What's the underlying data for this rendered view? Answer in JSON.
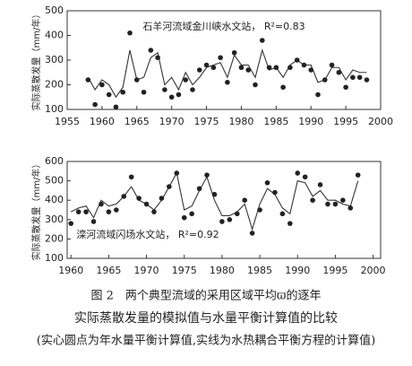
{
  "chart_data": [
    {
      "type": "line",
      "annotation": "石羊河流域金川峡水文站， R²=0.83",
      "y_label": "实际蒸散发量（mm/年）",
      "xlim": [
        1955,
        2000
      ],
      "xticks": [
        1955,
        1960,
        1965,
        1970,
        1975,
        1980,
        1985,
        1990,
        1995,
        2000
      ],
      "ylim": [
        100,
        500
      ],
      "yticks": [
        100,
        200,
        300,
        400,
        500
      ],
      "x": [
        1958,
        1959,
        1960,
        1961,
        1962,
        1963,
        1964,
        1965,
        1966,
        1967,
        1968,
        1969,
        1970,
        1971,
        1972,
        1973,
        1974,
        1975,
        1976,
        1977,
        1978,
        1979,
        1980,
        1981,
        1982,
        1983,
        1984,
        1985,
        1986,
        1987,
        1988,
        1989,
        1990,
        1991,
        1992,
        1993,
        1994,
        1995,
        1996,
        1997,
        1998
      ],
      "series": [
        {
          "mode": "line",
          "color": "#333333",
          "values": [
            230,
            180,
            220,
            200,
            150,
            190,
            340,
            220,
            230,
            310,
            330,
            200,
            230,
            180,
            250,
            200,
            230,
            270,
            280,
            290,
            230,
            320,
            280,
            280,
            230,
            340,
            260,
            270,
            230,
            280,
            300,
            280,
            280,
            210,
            220,
            270,
            270,
            220,
            260,
            250,
            250
          ]
        },
        {
          "mode": "markers",
          "color": "#222222",
          "values": [
            220,
            120,
            200,
            160,
            110,
            170,
            410,
            220,
            170,
            340,
            310,
            180,
            150,
            160,
            220,
            180,
            260,
            280,
            270,
            310,
            210,
            330,
            270,
            260,
            200,
            380,
            270,
            270,
            190,
            270,
            300,
            280,
            260,
            160,
            220,
            280,
            250,
            190,
            230,
            230,
            220
          ]
        }
      ]
    },
    {
      "type": "line",
      "annotation": "滦河流域闪场水文站， R²=0.92",
      "y_label": "实际蒸散发量（mm/年）",
      "xlim": [
        1959.5,
        2001
      ],
      "xticks": [
        1960,
        1965,
        1970,
        1975,
        1980,
        1985,
        1990,
        1995,
        2000
      ],
      "ylim": [
        100,
        600
      ],
      "yticks": [
        100,
        200,
        300,
        400,
        500,
        600
      ],
      "x": [
        1960,
        1961,
        1962,
        1963,
        1964,
        1965,
        1966,
        1967,
        1968,
        1969,
        1970,
        1971,
        1972,
        1973,
        1974,
        1975,
        1976,
        1977,
        1978,
        1979,
        1980,
        1981,
        1982,
        1983,
        1984,
        1985,
        1986,
        1987,
        1988,
        1989,
        1990,
        1991,
        1992,
        1993,
        1994,
        1995,
        1996,
        1997,
        1998
      ],
      "series": [
        {
          "mode": "line",
          "color": "#333333",
          "values": [
            340,
            360,
            370,
            310,
            400,
            370,
            380,
            420,
            470,
            400,
            380,
            350,
            400,
            470,
            540,
            350,
            370,
            450,
            520,
            400,
            320,
            320,
            340,
            380,
            250,
            380,
            460,
            430,
            360,
            330,
            500,
            490,
            420,
            450,
            400,
            400,
            380,
            370,
            500
          ]
        },
        {
          "mode": "markers",
          "color": "#222222",
          "values": [
            280,
            340,
            340,
            290,
            380,
            340,
            350,
            420,
            520,
            410,
            380,
            340,
            410,
            470,
            540,
            310,
            330,
            460,
            530,
            430,
            290,
            300,
            330,
            400,
            230,
            350,
            490,
            440,
            330,
            280,
            540,
            520,
            400,
            480,
            380,
            380,
            400,
            360,
            530
          ]
        }
      ]
    }
  ],
  "caption": {
    "lines": [
      "图 2　两个典型流域的采用区域平均ϖ的逐年",
      "实际蒸散发量的模拟值与水量平衡计算值的比较",
      "(实心圆点为年水量平衡计算值,实线为水热耦合平衡方程的计算值)"
    ]
  }
}
